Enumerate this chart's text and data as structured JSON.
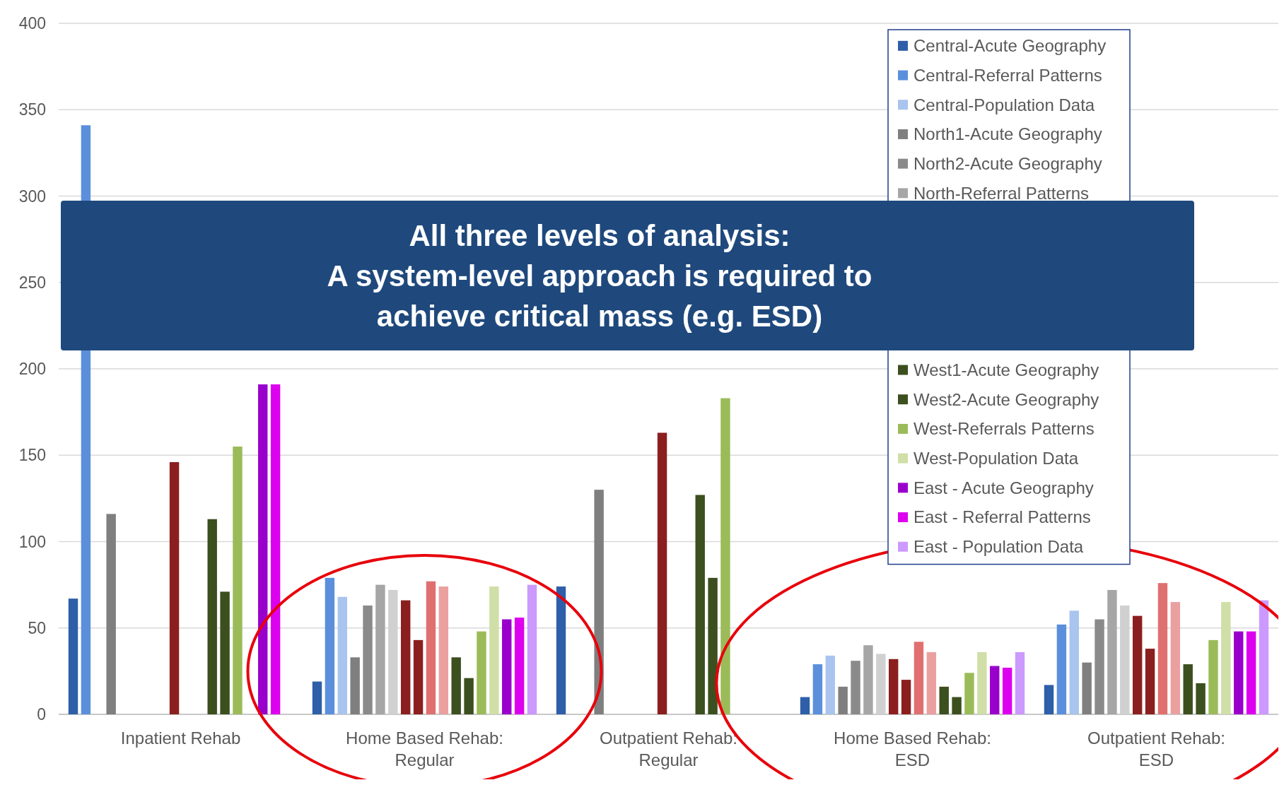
{
  "chart_data": {
    "type": "bar",
    "categories": [
      "Inpatient Rehab",
      "Home Based Rehab: Regular",
      "Outpatient Rehab: Regular",
      "Home Based Rehab: ESD",
      "Outpatient Rehab: ESD"
    ],
    "series": [
      {
        "name": "Central-Acute Geography",
        "color": "#2e5fa8",
        "values": [
          67,
          19,
          74,
          10,
          17
        ]
      },
      {
        "name": "Central-Referral Patterns",
        "color": "#5b8fdc",
        "values": [
          341,
          79,
          null,
          29,
          52
        ]
      },
      {
        "name": "Central-Population Data",
        "color": "#a9c4ee",
        "values": [
          null,
          68,
          null,
          34,
          60
        ]
      },
      {
        "name": "North1-Acute Geography",
        "color": "#7f7f7f",
        "values": [
          116,
          33,
          130,
          16,
          30
        ]
      },
      {
        "name": "North2-Acute Geography",
        "color": "#8a8a8a",
        "values": [
          null,
          63,
          null,
          31,
          55
        ]
      },
      {
        "name": "North-Referral Patterns",
        "color": "#a6a6a6",
        "values": [
          null,
          75,
          null,
          40,
          72
        ]
      },
      {
        "color": "#d0d0d0",
        "values": [
          null,
          72,
          null,
          35,
          63
        ]
      },
      {
        "color": "#8b1f1f",
        "values": [
          null,
          66,
          null,
          32,
          57
        ]
      },
      {
        "color": "#8b1f1f",
        "values": [
          146,
          43,
          163,
          20,
          38
        ]
      },
      {
        "color": "#e07070",
        "values": [
          null,
          77,
          null,
          42,
          76
        ]
      },
      {
        "color": "#eba0a0",
        "values": [
          null,
          74,
          null,
          36,
          65
        ]
      },
      {
        "name": "West1-Acute Geography",
        "color": "#3c4f1e",
        "values": [
          113,
          33,
          127,
          16,
          29
        ]
      },
      {
        "name": "West2-Acute Geography",
        "color": "#3c4f1e",
        "values": [
          71,
          21,
          79,
          10,
          18
        ]
      },
      {
        "name": "West-Referrals Patterns",
        "color": "#9bbb59",
        "values": [
          155,
          48,
          183,
          24,
          43
        ]
      },
      {
        "name": "West-Population Data",
        "color": "#d0dea8",
        "values": [
          null,
          74,
          null,
          36,
          65
        ]
      },
      {
        "name": "East - Acute Geography",
        "color": "#9a00cc",
        "values": [
          191,
          55,
          null,
          28,
          48
        ]
      },
      {
        "name": "East - Referral Patterns",
        "color": "#dd00ee",
        "values": [
          191,
          56,
          null,
          27,
          48
        ]
      },
      {
        "name": "East - Population Data",
        "color": "#cc99ff",
        "values": [
          null,
          75,
          null,
          36,
          66
        ]
      }
    ],
    "ylim": [
      0,
      400
    ],
    "yticks": [
      0,
      50,
      100,
      150,
      200,
      250,
      300,
      350,
      400
    ],
    "grid": "y",
    "legend": "top right",
    "annotations": [
      "All three levels of analysis:\nA system-level approach is required to\nachieve critical mass (e.g. ESD)"
    ]
  }
}
